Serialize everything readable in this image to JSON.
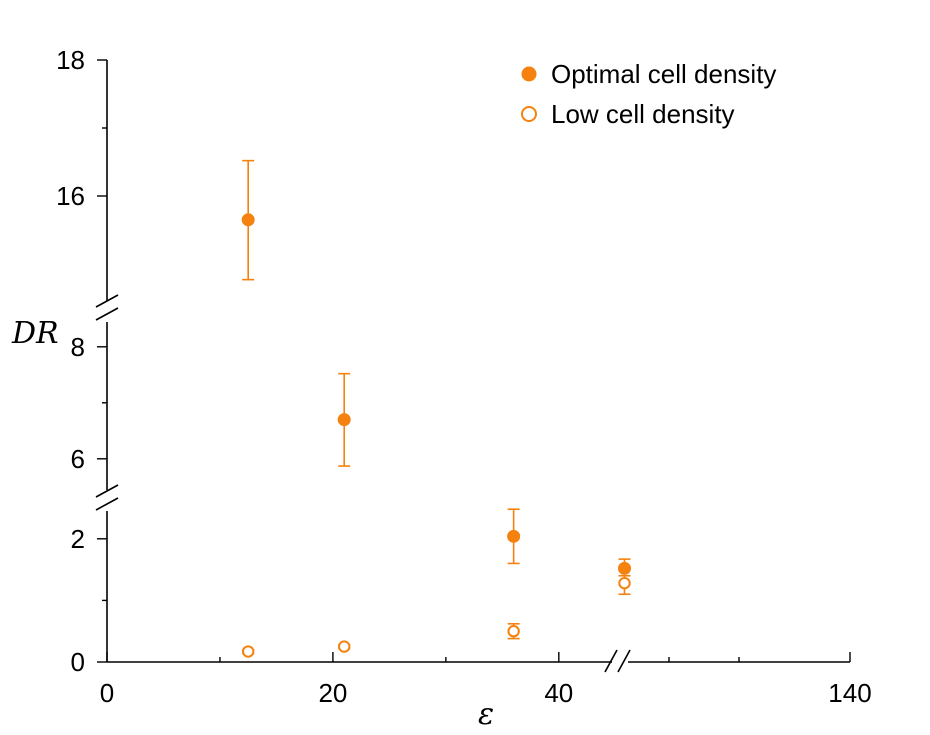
{
  "chart_data": {
    "type": "scatter",
    "title": "",
    "xlabel": "ε",
    "ylabel": "DR",
    "colors": {
      "series": "#F5820F",
      "axis": "#000000"
    },
    "x_axis": {
      "segments": [
        {
          "range": [
            0,
            44
          ],
          "ticks": [
            0,
            20,
            40
          ],
          "minor_ticks": [
            10,
            30
          ]
        },
        {
          "range": [
            44,
            140
          ],
          "ticks": [
            140
          ],
          "minor_ticks": []
        }
      ],
      "tick_labels": [
        "0",
        "20",
        "40",
        "140"
      ]
    },
    "y_axis": {
      "segments": [
        {
          "range": [
            0,
            2.5
          ],
          "ticks": [
            0,
            2
          ],
          "minor_ticks": [
            1
          ]
        },
        {
          "range": [
            5.3,
            8.3
          ],
          "ticks": [
            6,
            8
          ],
          "minor_ticks": [
            7
          ]
        },
        {
          "range": [
            14.5,
            18
          ],
          "ticks": [
            16,
            18
          ],
          "minor_ticks": [
            17
          ]
        }
      ],
      "tick_labels": [
        "0",
        "2",
        "6",
        "8",
        "16",
        "18"
      ]
    },
    "legend": {
      "position": "top-right"
    },
    "series": [
      {
        "name": "Optimal cell density",
        "marker": "filled-circle",
        "points": [
          {
            "x": 12.5,
            "y": 15.65,
            "err_low": 0.88,
            "err_high": 0.87
          },
          {
            "x": 21,
            "y": 6.7,
            "err_low": 0.83,
            "err_high": 0.82
          },
          {
            "x": 36,
            "y": 2.04,
            "err_low": 0.44,
            "err_high": 0.44
          },
          {
            "x": 52,
            "y": 1.52,
            "err_low": 0.0,
            "err_high": 0.15
          }
        ]
      },
      {
        "name": "Low cell density",
        "marker": "open-circle",
        "points": [
          {
            "x": 12.5,
            "y": 0.17,
            "err_low": 0.03,
            "err_high": 0.03
          },
          {
            "x": 21,
            "y": 0.25,
            "err_low": 0.03,
            "err_high": 0.03
          },
          {
            "x": 36,
            "y": 0.5,
            "err_low": 0.12,
            "err_high": 0.12
          },
          {
            "x": 52,
            "y": 1.28,
            "err_low": 0.18,
            "err_high": 0.12
          }
        ]
      }
    ]
  }
}
